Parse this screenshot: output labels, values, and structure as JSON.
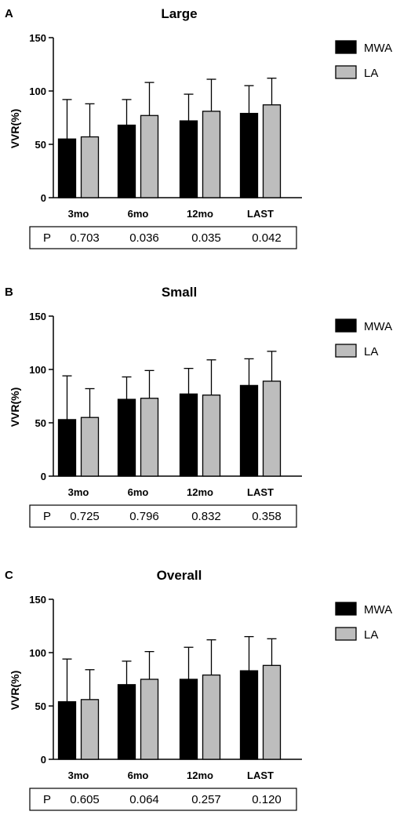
{
  "legend": {
    "series_names": [
      "MWA",
      "LA"
    ],
    "colors": [
      "#000000",
      "#bdbdbd"
    ]
  },
  "p_label": "P",
  "chart_data": [
    {
      "panel_label": "A",
      "type": "bar",
      "title": "Large",
      "ylabel": "VVR(%)",
      "ylim": [
        0,
        150
      ],
      "yticks": [
        "0",
        "50",
        "100",
        "150"
      ],
      "categories": [
        "3mo",
        "6mo",
        "12mo",
        "LAST"
      ],
      "series": [
        {
          "name": "MWA",
          "values": [
            55,
            68,
            72,
            79
          ],
          "error": [
            37,
            24,
            25,
            26
          ]
        },
        {
          "name": "LA",
          "values": [
            57,
            77,
            81,
            87
          ],
          "error": [
            31,
            31,
            30,
            25
          ]
        }
      ],
      "p_values": [
        "0.703",
        "0.036",
        "0.035",
        "0.042"
      ],
      "legend_position": "top-right"
    },
    {
      "panel_label": "B",
      "type": "bar",
      "title": "Small",
      "ylabel": "VVR(%)",
      "ylim": [
        0,
        150
      ],
      "yticks": [
        "0",
        "50",
        "100",
        "150"
      ],
      "categories": [
        "3mo",
        "6mo",
        "12mo",
        "LAST"
      ],
      "series": [
        {
          "name": "MWA",
          "values": [
            53,
            72,
            77,
            85
          ],
          "error": [
            41,
            21,
            24,
            25
          ]
        },
        {
          "name": "LA",
          "values": [
            55,
            73,
            76,
            89
          ],
          "error": [
            27,
            26,
            33,
            28
          ]
        }
      ],
      "p_values": [
        "0.725",
        "0.796",
        "0.832",
        "0.358"
      ],
      "legend_position": "top-right"
    },
    {
      "panel_label": "C",
      "type": "bar",
      "title": "Overall",
      "ylabel": "VVR(%)",
      "ylim": [
        0,
        150
      ],
      "yticks": [
        "0",
        "50",
        "100",
        "150"
      ],
      "categories": [
        "3mo",
        "6mo",
        "12mo",
        "LAST"
      ],
      "series": [
        {
          "name": "MWA",
          "values": [
            54,
            70,
            75,
            83
          ],
          "error": [
            40,
            22,
            30,
            32
          ]
        },
        {
          "name": "LA",
          "values": [
            56,
            75,
            79,
            88
          ],
          "error": [
            28,
            26,
            33,
            25
          ]
        }
      ],
      "p_values": [
        "0.605",
        "0.064",
        "0.257",
        "0.120"
      ],
      "legend_position": "top-right"
    }
  ]
}
